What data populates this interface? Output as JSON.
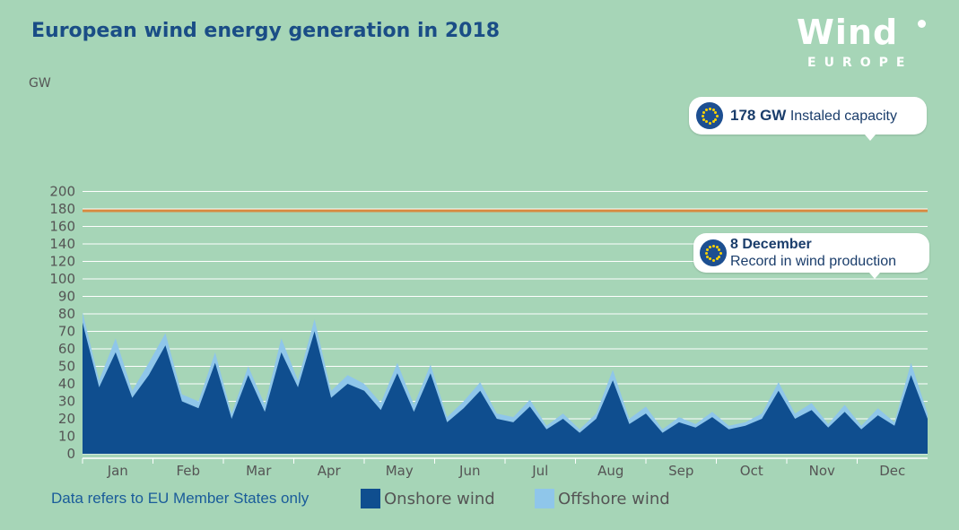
{
  "title": "European wind energy generation in 2018",
  "logo": {
    "main": "Wind",
    "sub": "EUROPE"
  },
  "footnote": "Data refers to EU Member States only",
  "callouts": {
    "capacity": {
      "value": "178 GW",
      "label": "Instaled capacity"
    },
    "record": {
      "title": "8 December",
      "subtitle": "Record in wind production"
    }
  },
  "colors": {
    "onshore": "#0f4e8f",
    "offshore": "#8fc6ea",
    "capacity_line": "#d8893f",
    "background": "#a6d5b7",
    "grid": "#ffffff"
  },
  "chart_data": {
    "type": "area",
    "ylabel": "GW",
    "xlabel": "",
    "ylim": [
      0,
      200
    ],
    "y_ticks": [
      0,
      10,
      20,
      30,
      40,
      50,
      60,
      70,
      80,
      90,
      100,
      120,
      140,
      160,
      180,
      200
    ],
    "months": [
      "Jan",
      "Feb",
      "Mar",
      "Apr",
      "May",
      "Jun",
      "Jul",
      "Aug",
      "Sep",
      "Oct",
      "Nov",
      "Dec"
    ],
    "x_unit": "week of 2018",
    "x": [
      1,
      2,
      3,
      4,
      5,
      6,
      7,
      8,
      9,
      10,
      11,
      12,
      13,
      14,
      15,
      16,
      17,
      18,
      19,
      20,
      21,
      22,
      23,
      24,
      25,
      26,
      27,
      28,
      29,
      30,
      31,
      32,
      33,
      34,
      35,
      36,
      37,
      38,
      39,
      40,
      41,
      42,
      43,
      44,
      45,
      46,
      47,
      48,
      49,
      50,
      51,
      52
    ],
    "reference_lines": [
      {
        "name": "Installed capacity",
        "value": 178
      }
    ],
    "annotations": [
      {
        "label": "8 December",
        "text": "Record in wind production",
        "x_week": 49,
        "value": 97
      }
    ],
    "series": [
      {
        "name": "Onshore wind",
        "values": [
          75,
          38,
          58,
          32,
          45,
          62,
          30,
          26,
          52,
          20,
          45,
          24,
          58,
          38,
          70,
          32,
          40,
          36,
          25,
          46,
          24,
          46,
          18,
          26,
          36,
          20,
          18,
          27,
          14,
          20,
          12,
          20,
          42,
          17,
          23,
          12,
          18,
          15,
          21,
          14,
          16,
          20,
          36,
          20,
          25,
          15,
          24,
          14,
          22,
          16,
          45,
          20
        ]
      },
      {
        "name": "Offshore wind",
        "values": [
          81,
          42,
          66,
          36,
          52,
          69,
          34,
          30,
          58,
          23,
          50,
          28,
          66,
          42,
          77,
          36,
          45,
          40,
          29,
          52,
          28,
          51,
          21,
          30,
          41,
          23,
          21,
          31,
          16,
          23,
          14,
          23,
          48,
          20,
          27,
          14,
          21,
          17,
          24,
          16,
          18,
          23,
          41,
          23,
          29,
          17,
          28,
          16,
          26,
          18,
          52,
          23
        ]
      }
    ]
  }
}
